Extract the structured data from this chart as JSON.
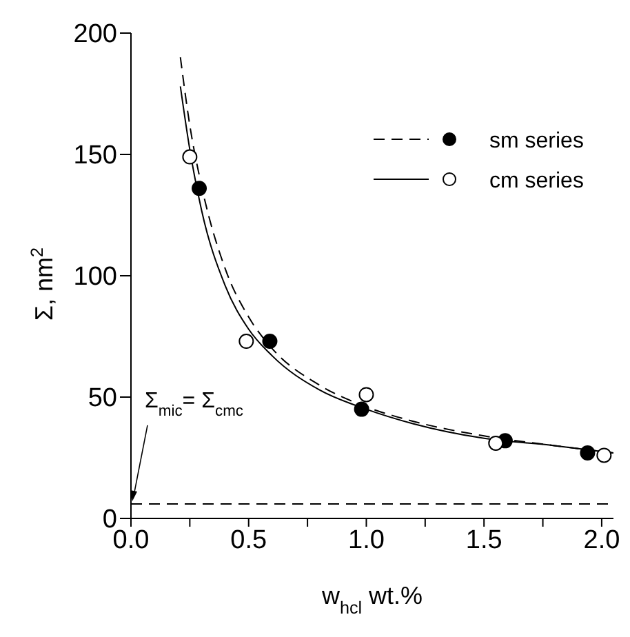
{
  "chart_data": {
    "type": "scatter",
    "xlabel": "w$_{hcl}$ wt.%",
    "ylabel": "Σ, nm$^{2}$",
    "xlim": [
      0,
      2.05
    ],
    "ylim": [
      0,
      200
    ],
    "xticks": [
      {
        "value": 0,
        "label": "0.0"
      },
      {
        "value": 0.25,
        "label": null
      },
      0.5,
      {
        "value": 0.75,
        "label": null
      },
      {
        "value": 1,
        "label": "1.0"
      },
      {
        "value": 1.25,
        "label": null
      },
      1.5,
      {
        "value": 1.75,
        "label": null
      },
      {
        "value": 2,
        "label": "2.0"
      }
    ],
    "yticks": [
      0,
      50,
      100,
      150,
      200
    ],
    "grid": false,
    "legend": "top right",
    "marker": "circle",
    "series": [
      {
        "name": "sm series",
        "color": "#000000",
        "x": [
          0.29,
          0.59,
          0.98,
          1.59,
          1.94
        ],
        "values": [
          136,
          73,
          45,
          32,
          27
        ]
      },
      {
        "name": "cm series",
        "color": "#ffffff",
        "x": [
          0.25,
          0.49,
          1.0,
          1.55,
          2.01
        ],
        "values": [
          149,
          73,
          51,
          31,
          26
        ]
      },
      {
        "type": "line",
        "color": "#000000",
        "line_style": "dashed",
        "marker": "none",
        "x": [
          0.21,
          0.25,
          0.3,
          0.4,
          0.5,
          0.6,
          0.8,
          1.0,
          1.2,
          1.5,
          1.8,
          2.05
        ],
        "values": [
          190,
          162,
          137,
          103,
          83,
          70,
          55,
          46,
          40,
          34,
          30,
          27
        ]
      },
      {
        "type": "line",
        "color": "#000000",
        "line_style": "solid",
        "marker": "none",
        "x": [
          0.21,
          0.25,
          0.3,
          0.4,
          0.5,
          0.6,
          0.8,
          1.0,
          1.2,
          1.5,
          1.8,
          2.05
        ],
        "values": [
          178,
          152,
          127,
          96,
          78,
          67,
          53,
          45,
          39,
          33,
          30,
          27
        ]
      }
    ],
    "ref_lines": [
      {
        "axis": "y",
        "value": 6,
        "label": null,
        "line_style": "dashed",
        "color": "#000000"
      }
    ],
    "annotations": [
      {
        "text": "Σ$_{mic}$= Σ$_{cmc}$",
        "x": 0,
        "y": 6
      }
    ]
  }
}
